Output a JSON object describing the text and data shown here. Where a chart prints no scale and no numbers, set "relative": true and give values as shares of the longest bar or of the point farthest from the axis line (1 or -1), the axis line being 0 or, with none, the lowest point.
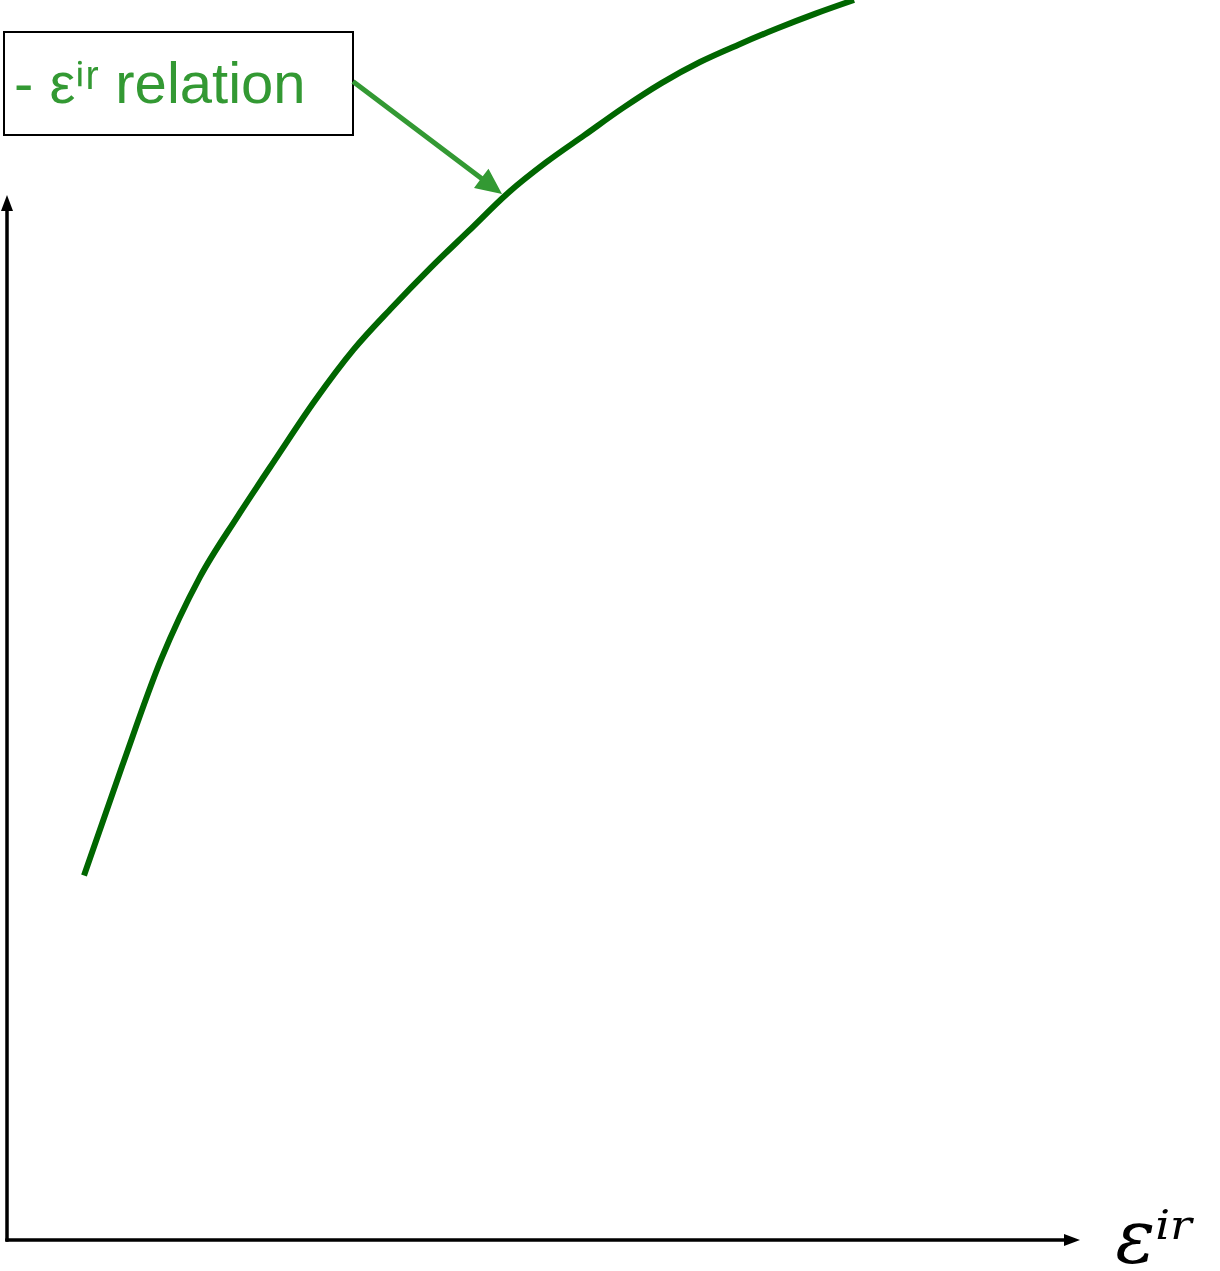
{
  "chart_data": {
    "type": "line",
    "categories": [
      null,
      null,
      null,
      null,
      null,
      null,
      null,
      null,
      null,
      null,
      null,
      null,
      null,
      null,
      null,
      null,
      null,
      null,
      null,
      null,
      null,
      null,
      null,
      null,
      null,
      null,
      null,
      null,
      null
    ],
    "series": [
      {
        "color": "#006600",
        "values": [
          null,
          null,
          0.294,
          0.383,
          0.468,
          0.534,
          0.584,
          0.631,
          0.677,
          0.718,
          0.752,
          0.784,
          0.814,
          0.844,
          0.869,
          0.891,
          0.913,
          0.933,
          0.95,
          0.964,
          0.977,
          0.989,
          1,
          null,
          null,
          null,
          null,
          null,
          null
        ]
      }
    ],
    "relative": true,
    "xlabel": "εⁱʳ",
    "annotations": [
      "- εⁱʳ relation"
    ],
    "marker": "none",
    "line_style": "solid"
  }
}
